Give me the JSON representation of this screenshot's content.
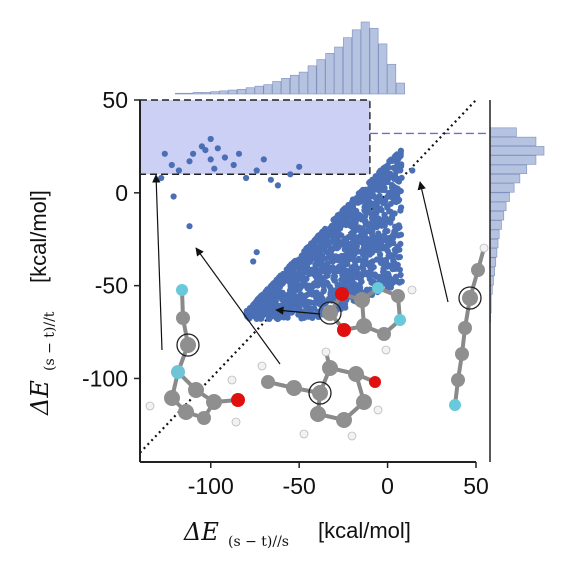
{
  "chart_data": {
    "type": "scatter",
    "title": "",
    "xlabel": {
      "symbol": "ΔE",
      "subscript": "(s − t)//s",
      "unit": "[kcal/mol]"
    },
    "ylabel": {
      "symbol": "ΔE",
      "subscript": "(s − t)//t",
      "unit": "[kcal/mol]"
    },
    "xlim": [
      -140,
      50
    ],
    "ylim": [
      -145,
      50
    ],
    "xticks": [
      -100,
      -50,
      0,
      50
    ],
    "yticks": [
      50,
      0,
      -50,
      -100
    ],
    "xtick_labels": [
      "-100",
      "-50",
      "0",
      "50"
    ],
    "ytick_labels": [
      "50",
      "0",
      "-50",
      "-100"
    ],
    "grid": false,
    "diagonal": {
      "from": [
        -140,
        -140
      ],
      "to": [
        50,
        50
      ],
      "style": "dotted"
    },
    "highlight_region": {
      "x": [
        -140,
        -10
      ],
      "y": [
        10,
        50
      ],
      "color": "#cdd0f5"
    },
    "threshold_line_y": 32,
    "point_color": "#4a6fb5",
    "outlier_points": [
      [
        -126,
        21
      ],
      [
        -105,
        25
      ],
      [
        -103,
        23
      ],
      [
        -110,
        21
      ],
      [
        -100,
        29
      ],
      [
        -96,
        24
      ],
      [
        -128,
        8
      ],
      [
        -122,
        15
      ],
      [
        -118,
        12
      ],
      [
        -112,
        17
      ],
      [
        -100,
        18
      ],
      [
        -98,
        13
      ],
      [
        -92,
        19
      ],
      [
        -87,
        15
      ],
      [
        -84,
        21
      ],
      [
        -112,
        -18
      ],
      [
        -121,
        -2
      ],
      [
        -80,
        8
      ],
      [
        -74,
        12
      ],
      [
        -70,
        18
      ],
      [
        -66,
        7
      ],
      [
        -62,
        4
      ],
      [
        -55,
        10
      ],
      [
        -50,
        14
      ],
      [
        14,
        12
      ],
      [
        -64,
        -56
      ],
      [
        -68,
        -52
      ],
      [
        -58,
        -60
      ],
      [
        -74,
        -32
      ],
      [
        -76,
        -37
      ]
    ],
    "marginal_histograms": {
      "top": {
        "bin_edges_x": [
          -120,
          -115,
          -110,
          -105,
          -100,
          -95,
          -90,
          -85,
          -80,
          -75,
          -70,
          -65,
          -60,
          -55,
          -50,
          -45,
          -40,
          -35,
          -30,
          -25,
          -20,
          -15,
          -10,
          -5,
          0,
          5,
          10
        ],
        "counts": [
          1,
          1,
          2,
          2,
          3,
          4,
          5,
          6,
          8,
          10,
          12,
          16,
          20,
          24,
          28,
          36,
          44,
          52,
          60,
          72,
          82,
          92,
          84,
          64,
          38,
          14
        ]
      },
      "right": {
        "bin_edges_y": [
          -70,
          -65,
          -60,
          -55,
          -50,
          -45,
          -40,
          -35,
          -30,
          -25,
          -20,
          -15,
          -10,
          -5,
          0,
          5,
          10,
          15,
          20,
          25,
          30,
          35
        ],
        "counts": [
          1,
          2,
          2,
          4,
          6,
          8,
          10,
          12,
          14,
          16,
          20,
          24,
          28,
          34,
          42,
          52,
          64,
          80,
          94,
          80,
          46
        ]
      }
    },
    "annotations": [
      {
        "label": "molecule-top-left-chain",
        "arrow_to": [
          -128,
          13
        ]
      },
      {
        "label": "molecule-bottom-cyclopentadienyl",
        "arrow_to": [
          -112,
          -27
        ]
      },
      {
        "label": "molecule-center-bicyclic",
        "arrow_to": [
          -63,
          -59
        ]
      },
      {
        "label": "molecule-right-linear-chain",
        "arrow_to": [
          16,
          12
        ]
      }
    ]
  }
}
